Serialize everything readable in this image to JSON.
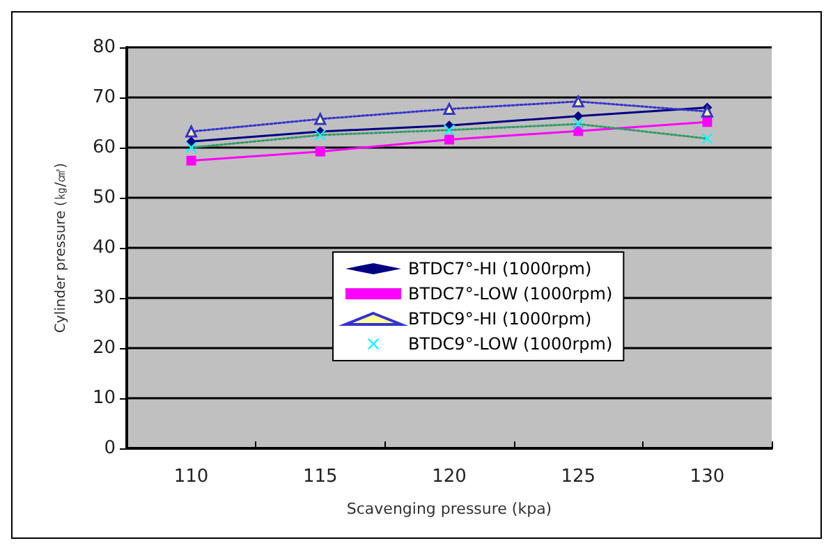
{
  "chart_data": {
    "type": "line",
    "xlabel": "Scavenging pressure (kpa)",
    "ylabel": "Cylinder pressure (㎏/㎠)",
    "categories": [
      "110",
      "115",
      "120",
      "125",
      "130"
    ],
    "series": [
      {
        "name": "BTDC7°-HI (1000rpm)",
        "color": "#000080",
        "marker": "diamond",
        "line_style": "solid",
        "values": [
          61.2,
          63.2,
          64.4,
          66.3,
          68
        ]
      },
      {
        "name": "BTDC7°-LOW (1000rpm)",
        "color": "#ff00ff",
        "marker": "square",
        "line_style": "solid",
        "values": [
          57.4,
          59.2,
          61.6,
          63.3,
          65.1
        ]
      },
      {
        "name": "BTDC9°-HI (1000rpm)",
        "color": "#3333cc",
        "marker": "triangle",
        "line_style": "dotted",
        "values": [
          63.2,
          65.7,
          67.7,
          69.2,
          67.2
        ]
      },
      {
        "name": "BTDC9°-LOW (1000rpm)",
        "color": "#339966",
        "marker": "cross",
        "line_style": "dotted",
        "values": [
          60,
          62.5,
          63.5,
          64.7,
          61.8
        ]
      }
    ],
    "ylim": [
      0,
      80
    ],
    "yticks": [
      0,
      10,
      20,
      30,
      40,
      50,
      60,
      70,
      80
    ],
    "grid": "y",
    "legend": "center"
  }
}
